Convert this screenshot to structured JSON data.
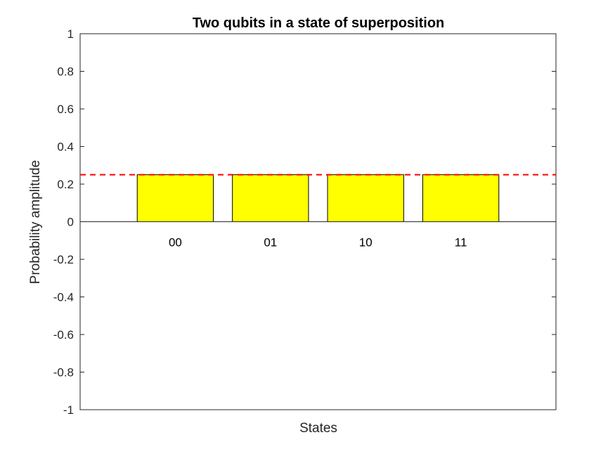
{
  "chart_data": {
    "type": "bar",
    "title": "Two qubits in a state of superposition",
    "xlabel": "States",
    "ylabel": "Probability amplitude",
    "categories": [
      "00",
      "01",
      "10",
      "11"
    ],
    "values": [
      0.25,
      0.25,
      0.25,
      0.25
    ],
    "ylim": [
      -1,
      1
    ],
    "yticks": [
      1,
      0.8,
      0.6,
      0.4,
      0.2,
      0,
      -0.2,
      -0.4,
      -0.6,
      -0.8,
      -1
    ],
    "ytick_labels": [
      "1",
      "0.8",
      "0.6",
      "0.4",
      "0.2",
      "0",
      "-0.2",
      "-0.4",
      "-0.6",
      "-0.8",
      "-1"
    ],
    "reference_line": {
      "y": 0.25,
      "style": "dashed",
      "color": "#ff0000"
    },
    "bar_color": "#ffff00",
    "bar_edge_color": "#000000",
    "grid": false
  }
}
